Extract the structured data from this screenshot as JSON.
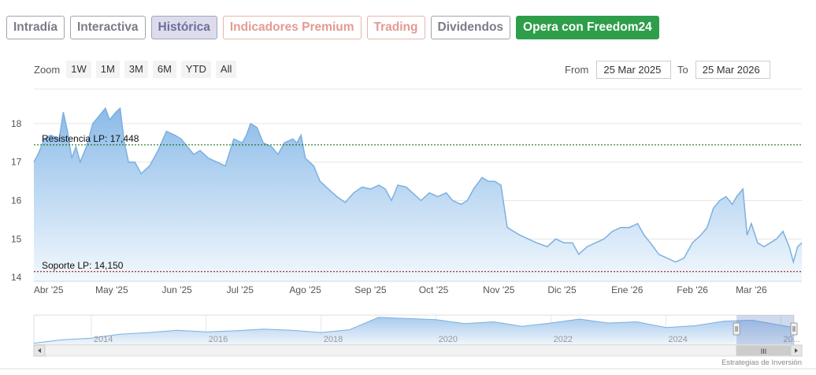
{
  "tabs": [
    {
      "label": "Intradía",
      "style": "gray"
    },
    {
      "label": "Interactiva",
      "style": "gray"
    },
    {
      "label": "Histórica",
      "style": "active"
    },
    {
      "label": "Indicadores Premium",
      "style": "salmon"
    },
    {
      "label": "Trading",
      "style": "salmon"
    },
    {
      "label": "Dividendos",
      "style": "gray"
    },
    {
      "label": "Opera con Freedom24",
      "style": "green"
    }
  ],
  "zoom": {
    "label": "Zoom",
    "buttons": [
      "1W",
      "1M",
      "3M",
      "6M",
      "YTD",
      "All"
    ]
  },
  "range": {
    "from_label": "From",
    "from_value": "25 Mar 2025",
    "to_label": "To",
    "to_value": "25 Mar 2026"
  },
  "credit": "Estrategias de Inversión",
  "navigator": {
    "year_labels": [
      "2014",
      "2016",
      "2018",
      "2020",
      "2022",
      "2024",
      "20..."
    ],
    "scroll_grip": "III"
  },
  "chart_data": {
    "type": "area",
    "x_start": "2025-03-25",
    "x_end": "2026-03-25",
    "ylim": [
      13.9,
      18.9
    ],
    "y_ticks": [
      14,
      15,
      16,
      17,
      18
    ],
    "x_tick_labels": [
      "Abr '25",
      "May '25",
      "Jun '25",
      "Jul '25",
      "Ago '25",
      "Sep '25",
      "Oct '25",
      "Nov '25",
      "Dic '25",
      "Ene '26",
      "Feb '26",
      "Mar '26"
    ],
    "grid": true,
    "colors": {
      "line": "#7cb0e0",
      "fill_top": "#8bbbe8",
      "fill_bottom": "#f2f8fd",
      "support": "#8b0000",
      "resistance": "#006400"
    },
    "reference_lines": [
      {
        "label": "Resistencia LP: 17,448",
        "value": 17.448,
        "color": "#006400"
      },
      {
        "label": "Soporte LP: 14,150",
        "value": 14.15,
        "color": "#8b0000"
      }
    ],
    "series": [
      {
        "values": [
          [
            "2025-03-25",
            17.0
          ],
          [
            "2025-03-27",
            17.2
          ],
          [
            "2025-03-30",
            17.6
          ],
          [
            "2025-04-02",
            17.7
          ],
          [
            "2025-04-06",
            17.6
          ],
          [
            "2025-04-08",
            18.3
          ],
          [
            "2025-04-10",
            17.8
          ],
          [
            "2025-04-12",
            17.1
          ],
          [
            "2025-04-14",
            17.4
          ],
          [
            "2025-04-16",
            17.0
          ],
          [
            "2025-04-19",
            17.4
          ],
          [
            "2025-04-22",
            18.0
          ],
          [
            "2025-04-25",
            18.2
          ],
          [
            "2025-04-28",
            18.4
          ],
          [
            "2025-04-30",
            18.1
          ],
          [
            "2025-05-03",
            18.3
          ],
          [
            "2025-05-05",
            18.4
          ],
          [
            "2025-05-07",
            17.5
          ],
          [
            "2025-05-09",
            17.0
          ],
          [
            "2025-05-12",
            17.0
          ],
          [
            "2025-05-15",
            16.7
          ],
          [
            "2025-05-19",
            16.9
          ],
          [
            "2025-05-23",
            17.3
          ],
          [
            "2025-05-27",
            17.8
          ],
          [
            "2025-05-31",
            17.7
          ],
          [
            "2025-06-03",
            17.6
          ],
          [
            "2025-06-06",
            17.4
          ],
          [
            "2025-06-09",
            17.2
          ],
          [
            "2025-06-12",
            17.3
          ],
          [
            "2025-06-16",
            17.1
          ],
          [
            "2025-06-20",
            17.0
          ],
          [
            "2025-06-24",
            16.9
          ],
          [
            "2025-06-28",
            17.6
          ],
          [
            "2025-07-02",
            17.5
          ],
          [
            "2025-07-04",
            17.7
          ],
          [
            "2025-07-06",
            18.0
          ],
          [
            "2025-07-09",
            17.9
          ],
          [
            "2025-07-12",
            17.5
          ],
          [
            "2025-07-16",
            17.4
          ],
          [
            "2025-07-19",
            17.2
          ],
          [
            "2025-07-22",
            17.5
          ],
          [
            "2025-07-26",
            17.6
          ],
          [
            "2025-07-28",
            17.5
          ],
          [
            "2025-07-30",
            17.7
          ],
          [
            "2025-08-01",
            17.1
          ],
          [
            "2025-08-05",
            16.9
          ],
          [
            "2025-08-08",
            16.5
          ],
          [
            "2025-08-12",
            16.3
          ],
          [
            "2025-08-16",
            16.1
          ],
          [
            "2025-08-20",
            15.95
          ],
          [
            "2025-08-24",
            16.2
          ],
          [
            "2025-08-28",
            16.35
          ],
          [
            "2025-09-01",
            16.3
          ],
          [
            "2025-09-05",
            16.4
          ],
          [
            "2025-09-08",
            16.3
          ],
          [
            "2025-09-11",
            16.0
          ],
          [
            "2025-09-14",
            16.4
          ],
          [
            "2025-09-18",
            16.35
          ],
          [
            "2025-09-21",
            16.2
          ],
          [
            "2025-09-25",
            16.0
          ],
          [
            "2025-09-29",
            16.2
          ],
          [
            "2025-10-03",
            16.1
          ],
          [
            "2025-10-07",
            16.2
          ],
          [
            "2025-10-10",
            16.0
          ],
          [
            "2025-10-14",
            15.9
          ],
          [
            "2025-10-17",
            16.0
          ],
          [
            "2025-10-20",
            16.3
          ],
          [
            "2025-10-24",
            16.6
          ],
          [
            "2025-10-27",
            16.5
          ],
          [
            "2025-10-30",
            16.5
          ],
          [
            "2025-11-02",
            16.4
          ],
          [
            "2025-11-05",
            15.3
          ],
          [
            "2025-11-08",
            15.2
          ],
          [
            "2025-11-11",
            15.1
          ],
          [
            "2025-11-15",
            15.0
          ],
          [
            "2025-11-19",
            14.9
          ],
          [
            "2025-11-24",
            14.8
          ],
          [
            "2025-11-28",
            15.0
          ],
          [
            "2025-12-02",
            14.9
          ],
          [
            "2025-12-06",
            14.9
          ],
          [
            "2025-12-09",
            14.6
          ],
          [
            "2025-12-13",
            14.8
          ],
          [
            "2025-12-17",
            14.9
          ],
          [
            "2025-12-21",
            15.0
          ],
          [
            "2025-12-25",
            15.2
          ],
          [
            "2025-12-29",
            15.3
          ],
          [
            "2026-01-02",
            15.3
          ],
          [
            "2026-01-06",
            15.4
          ],
          [
            "2026-01-09",
            15.1
          ],
          [
            "2026-01-12",
            14.9
          ],
          [
            "2026-01-16",
            14.6
          ],
          [
            "2026-01-20",
            14.5
          ],
          [
            "2026-01-24",
            14.4
          ],
          [
            "2026-01-28",
            14.5
          ],
          [
            "2026-02-01",
            14.9
          ],
          [
            "2026-02-05",
            15.1
          ],
          [
            "2026-02-08",
            15.3
          ],
          [
            "2026-02-11",
            15.8
          ],
          [
            "2026-02-14",
            16.0
          ],
          [
            "2026-02-17",
            16.1
          ],
          [
            "2026-02-20",
            15.9
          ],
          [
            "2026-02-22",
            16.1
          ],
          [
            "2026-02-25",
            16.3
          ],
          [
            "2026-02-27",
            15.1
          ],
          [
            "2026-03-01",
            15.4
          ],
          [
            "2026-03-04",
            14.9
          ],
          [
            "2026-03-07",
            14.8
          ],
          [
            "2026-03-10",
            14.9
          ],
          [
            "2026-03-13",
            15.0
          ],
          [
            "2026-03-16",
            15.2
          ],
          [
            "2026-03-19",
            14.8
          ],
          [
            "2026-03-21",
            14.4
          ],
          [
            "2026-03-23",
            14.8
          ],
          [
            "2026-03-25",
            14.9
          ]
        ]
      }
    ],
    "navigator_values": [
      [
        "2013-01-01",
        14.0
      ],
      [
        "2013-07-01",
        14.6
      ],
      [
        "2014-01-01",
        14.9
      ],
      [
        "2014-07-01",
        15.6
      ],
      [
        "2015-01-01",
        15.9
      ],
      [
        "2015-07-01",
        16.3
      ],
      [
        "2016-01-01",
        16.0
      ],
      [
        "2016-07-01",
        16.2
      ],
      [
        "2017-01-01",
        16.5
      ],
      [
        "2017-07-01",
        16.3
      ],
      [
        "2018-01-01",
        15.9
      ],
      [
        "2018-07-01",
        16.4
      ],
      [
        "2019-01-01",
        18.6
      ],
      [
        "2019-07-01",
        18.4
      ],
      [
        "2020-01-01",
        18.2
      ],
      [
        "2020-07-01",
        17.5
      ],
      [
        "2021-01-01",
        17.8
      ],
      [
        "2021-07-01",
        17.0
      ],
      [
        "2022-01-01",
        17.6
      ],
      [
        "2022-07-01",
        18.3
      ],
      [
        "2023-01-01",
        17.6
      ],
      [
        "2023-07-01",
        17.8
      ],
      [
        "2024-01-01",
        16.8
      ],
      [
        "2024-07-01",
        17.1
      ],
      [
        "2025-01-01",
        17.9
      ],
      [
        "2025-07-01",
        18.1
      ],
      [
        "2026-03-25",
        16.8
      ]
    ]
  }
}
